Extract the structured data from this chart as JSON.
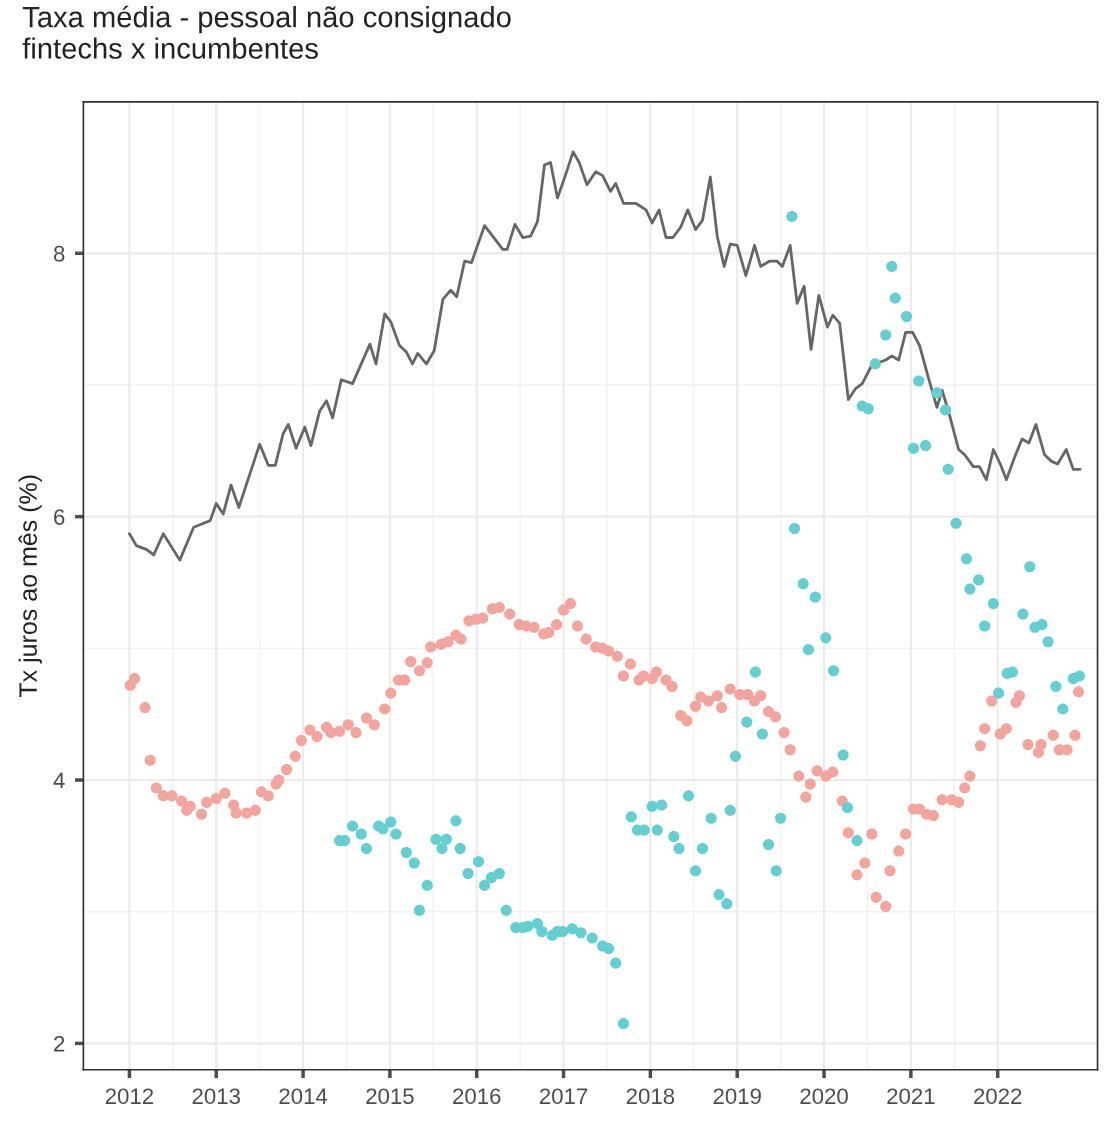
{
  "chart_data": {
    "type": "line",
    "title": "Taxa média - pessoal não consignado\nfintechs x incumbentes",
    "ylabel": "Tx juros ao mês (%)",
    "xlim": [
      2011.47,
      2023.15
    ],
    "ylim": [
      1.8,
      9.15
    ],
    "xticks": [
      2012,
      2013,
      2014,
      2015,
      2016,
      2017,
      2018,
      2019,
      2020,
      2021,
      2022
    ],
    "yticks": [
      2,
      4,
      6,
      8
    ],
    "grid": true,
    "legend": false,
    "series": [
      {
        "color": "#666666",
        "x": [
          2012.0,
          2012.08,
          2012.2,
          2012.28,
          2012.39,
          2012.58,
          2012.74,
          2012.93,
          2013.0,
          2013.08,
          2013.17,
          2013.26,
          2013.5,
          2013.6,
          2013.68,
          2013.77,
          2013.83,
          2013.92,
          2014.02,
          2014.09,
          2014.19,
          2014.27,
          2014.34,
          2014.44,
          2014.57,
          2014.77,
          2014.84,
          2014.94,
          2015.01,
          2015.11,
          2015.19,
          2015.26,
          2015.32,
          2015.42,
          2015.51,
          2015.61,
          2015.7,
          2015.77,
          2015.86,
          2015.94,
          2016.09,
          2016.3,
          2016.35,
          2016.44,
          2016.53,
          2016.62,
          2016.7,
          2016.78,
          2016.85,
          2016.93,
          2017.02,
          2017.11,
          2017.18,
          2017.27,
          2017.37,
          2017.45,
          2017.54,
          2017.6,
          2017.69,
          2017.83,
          2017.95,
          2018.02,
          2018.1,
          2018.18,
          2018.26,
          2018.35,
          2018.43,
          2018.52,
          2018.6,
          2018.69,
          2018.77,
          2018.85,
          2018.92,
          2019.0,
          2019.1,
          2019.2,
          2019.27,
          2019.37,
          2019.46,
          2019.52,
          2019.61,
          2019.69,
          2019.77,
          2019.85,
          2019.94,
          2020.04,
          2020.1,
          2020.18,
          2020.28,
          2020.36,
          2020.44,
          2020.55,
          2020.71,
          2020.78,
          2020.86,
          2020.94,
          2021.02,
          2021.1,
          2021.2,
          2021.3,
          2021.36,
          2021.45,
          2021.55,
          2021.62,
          2021.72,
          2021.79,
          2021.87,
          2021.95,
          2022.03,
          2022.1,
          2022.2,
          2022.28,
          2022.36,
          2022.44,
          2022.54,
          2022.62,
          2022.69,
          2022.79,
          2022.87,
          2022.95
        ],
        "values": [
          5.87,
          5.78,
          5.75,
          5.71,
          5.87,
          5.67,
          5.92,
          5.97,
          6.1,
          6.02,
          6.24,
          6.07,
          6.55,
          6.39,
          6.39,
          6.63,
          6.7,
          6.52,
          6.68,
          6.54,
          6.8,
          6.88,
          6.75,
          7.04,
          7.01,
          7.31,
          7.16,
          7.54,
          7.48,
          7.3,
          7.25,
          7.16,
          7.24,
          7.16,
          7.26,
          7.65,
          7.72,
          7.67,
          7.94,
          7.93,
          8.21,
          8.03,
          8.03,
          8.22,
          8.12,
          8.13,
          8.24,
          8.67,
          8.69,
          8.42,
          8.59,
          8.77,
          8.69,
          8.52,
          8.62,
          8.59,
          8.47,
          8.53,
          8.38,
          8.38,
          8.33,
          8.23,
          8.33,
          8.12,
          8.12,
          8.2,
          8.33,
          8.18,
          8.25,
          8.58,
          8.13,
          7.9,
          8.07,
          8.06,
          7.83,
          8.06,
          7.9,
          7.94,
          7.94,
          7.9,
          8.06,
          7.62,
          7.75,
          7.27,
          7.68,
          7.44,
          7.53,
          7.47,
          6.89,
          6.97,
          7.01,
          7.15,
          7.19,
          7.22,
          7.19,
          7.4,
          7.4,
          7.3,
          7.06,
          6.83,
          6.96,
          6.76,
          6.51,
          6.47,
          6.38,
          6.38,
          6.28,
          6.51,
          6.4,
          6.28,
          6.46,
          6.59,
          6.56,
          6.7,
          6.47,
          6.42,
          6.4,
          6.51,
          6.36,
          6.36
        ]
      },
      {
        "type": "scatter",
        "color": "#f2a49d",
        "x": [
          2012.01,
          2012.06,
          2012.18,
          2012.24,
          2012.31,
          2012.39,
          2012.49,
          2012.6,
          2012.66,
          2012.7,
          2012.83,
          2012.89,
          2013.0,
          2013.1,
          2013.2,
          2013.23,
          2013.35,
          2013.45,
          2013.52,
          2013.6,
          2013.69,
          2013.72,
          2013.81,
          2013.91,
          2013.98,
          2014.08,
          2014.16,
          2014.27,
          2014.32,
          2014.42,
          2014.52,
          2014.61,
          2014.73,
          2014.82,
          2014.94,
          2015.01,
          2015.1,
          2015.17,
          2015.24,
          2015.34,
          2015.43,
          2015.47,
          2015.59,
          2015.67,
          2015.76,
          2015.82,
          2015.91,
          2015.99,
          2016.07,
          2016.18,
          2016.26,
          2016.38,
          2016.49,
          2016.57,
          2016.66,
          2016.77,
          2016.83,
          2016.92,
          2017.0,
          2017.08,
          2017.16,
          2017.26,
          2017.37,
          2017.45,
          2017.52,
          2017.62,
          2017.69,
          2017.77,
          2017.87,
          2017.92,
          2018.02,
          2018.07,
          2018.18,
          2018.25,
          2018.35,
          2018.42,
          2018.52,
          2018.58,
          2018.67,
          2018.77,
          2018.82,
          2018.92,
          2019.03,
          2019.12,
          2019.2,
          2019.27,
          2019.36,
          2019.44,
          2019.54,
          2019.61,
          2019.71,
          2019.79,
          2019.84,
          2019.92,
          2020.02,
          2020.1,
          2020.21,
          2020.28,
          2020.38,
          2020.47,
          2020.55,
          2020.6,
          2020.71,
          2020.76,
          2020.86,
          2020.94,
          2021.03,
          2021.1,
          2021.18,
          2021.26,
          2021.36,
          2021.47,
          2021.55,
          2021.62,
          2021.68,
          2021.8,
          2021.85,
          2021.93,
          2022.03,
          2022.1,
          2022.21,
          2022.25,
          2022.35,
          2022.47,
          2022.5,
          2022.64,
          2022.71,
          2022.8,
          2022.89,
          2022.93
        ],
        "values": [
          4.72,
          4.77,
          4.55,
          4.15,
          3.94,
          3.88,
          3.88,
          3.84,
          3.77,
          3.8,
          3.74,
          3.83,
          3.86,
          3.9,
          3.81,
          3.75,
          3.75,
          3.77,
          3.91,
          3.88,
          3.97,
          4.0,
          4.08,
          4.18,
          4.3,
          4.38,
          4.33,
          4.4,
          4.36,
          4.37,
          4.42,
          4.36,
          4.47,
          4.42,
          4.54,
          4.66,
          4.76,
          4.76,
          4.9,
          4.83,
          4.89,
          5.01,
          5.03,
          5.05,
          5.1,
          5.07,
          5.21,
          5.22,
          5.23,
          5.3,
          5.31,
          5.26,
          5.18,
          5.17,
          5.16,
          5.11,
          5.12,
          5.18,
          5.29,
          5.34,
          5.17,
          5.07,
          5.01,
          5.0,
          4.98,
          4.94,
          4.79,
          4.88,
          4.76,
          4.79,
          4.77,
          4.82,
          4.76,
          4.71,
          4.49,
          4.45,
          4.56,
          4.63,
          4.6,
          4.64,
          4.55,
          4.69,
          4.65,
          4.65,
          4.6,
          4.64,
          4.52,
          4.48,
          4.36,
          4.23,
          4.03,
          3.87,
          3.97,
          4.07,
          4.03,
          4.06,
          3.84,
          3.6,
          3.28,
          3.37,
          3.59,
          3.11,
          3.04,
          3.31,
          3.46,
          3.59,
          3.78,
          3.78,
          3.74,
          3.73,
          3.85,
          3.85,
          3.83,
          3.94,
          4.03,
          4.26,
          4.39,
          4.6,
          4.35,
          4.39,
          4.59,
          4.64,
          4.27,
          4.21,
          4.27,
          4.34,
          4.23,
          4.23,
          4.34,
          4.67
        ]
      },
      {
        "type": "scatter",
        "color": "#63cfd1",
        "x": [
          2014.42,
          2014.48,
          2014.57,
          2014.67,
          2014.73,
          2014.87,
          2014.92,
          2015.01,
          2015.07,
          2015.19,
          2015.28,
          2015.34,
          2015.43,
          2015.53,
          2015.6,
          2015.65,
          2015.76,
          2015.81,
          2015.9,
          2016.02,
          2016.09,
          2016.17,
          2016.26,
          2016.34,
          2016.45,
          2016.53,
          2016.59,
          2016.7,
          2016.75,
          2016.87,
          2016.93,
          2016.99,
          2017.1,
          2017.2,
          2017.33,
          2017.45,
          2017.52,
          2017.6,
          2017.69,
          2017.78,
          2017.85,
          2017.93,
          2018.02,
          2018.08,
          2018.13,
          2018.27,
          2018.33,
          2018.44,
          2018.52,
          2018.6,
          2018.7,
          2018.79,
          2018.88,
          2018.92,
          2018.98,
          2019.11,
          2019.21,
          2019.29,
          2019.36,
          2019.45,
          2019.5,
          2019.63,
          2019.66,
          2019.76,
          2019.82,
          2019.9,
          2020.02,
          2020.11,
          2020.22,
          2020.27,
          2020.38,
          2020.44,
          2020.51,
          2020.59,
          2020.71,
          2020.78,
          2020.82,
          2020.95,
          2021.03,
          2021.09,
          2021.17,
          2021.3,
          2021.4,
          2021.43,
          2021.52,
          2021.64,
          2021.68,
          2021.78,
          2021.85,
          2021.95,
          2022.01,
          2022.11,
          2022.17,
          2022.29,
          2022.37,
          2022.43,
          2022.51,
          2022.58,
          2022.67,
          2022.75,
          2022.87,
          2022.94
        ],
        "values": [
          3.54,
          3.54,
          3.65,
          3.59,
          3.48,
          3.65,
          3.63,
          3.68,
          3.59,
          3.45,
          3.37,
          3.01,
          3.2,
          3.55,
          3.48,
          3.55,
          3.69,
          3.48,
          3.29,
          3.38,
          3.2,
          3.26,
          3.29,
          3.01,
          2.88,
          2.88,
          2.89,
          2.91,
          2.85,
          2.82,
          2.85,
          2.85,
          2.87,
          2.84,
          2.8,
          2.74,
          2.72,
          2.61,
          2.15,
          3.72,
          3.62,
          3.62,
          3.8,
          3.62,
          3.81,
          3.57,
          3.48,
          3.88,
          3.31,
          3.48,
          3.71,
          3.13,
          3.06,
          3.77,
          4.18,
          4.44,
          4.82,
          4.35,
          3.51,
          3.31,
          3.71,
          8.28,
          5.91,
          5.49,
          4.99,
          5.39,
          5.08,
          4.83,
          4.19,
          3.79,
          3.54,
          6.84,
          6.82,
          7.16,
          7.38,
          7.9,
          7.66,
          7.52,
          6.52,
          7.03,
          6.54,
          6.94,
          6.81,
          6.36,
          5.95,
          5.68,
          5.45,
          5.52,
          5.17,
          5.34,
          4.66,
          4.81,
          4.82,
          5.26,
          5.62,
          5.16,
          5.18,
          5.05,
          4.71,
          4.54,
          4.77,
          4.79
        ]
      }
    ]
  }
}
